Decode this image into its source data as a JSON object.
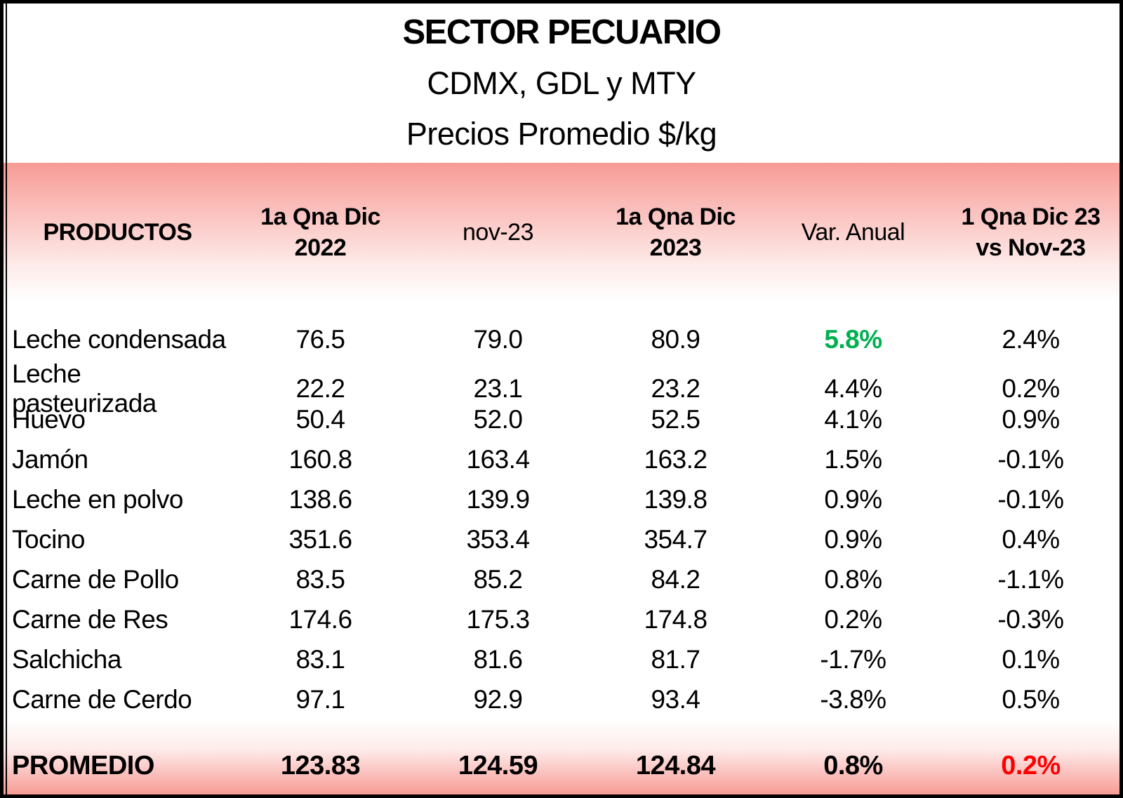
{
  "title": {
    "line1": "SECTOR PECUARIO",
    "line2": "CDMX, GDL y MTY",
    "line3": "Precios Promedio $/kg"
  },
  "table": {
    "headers": [
      "PRODUCTOS",
      "1a Qna Dic\n2022",
      "nov-23",
      "1a Qna Dic\n2023",
      "Var. Anual",
      "1 Qna Dic 23\nvs Nov-23"
    ],
    "rows": [
      {
        "producto": "Leche condensada",
        "values": [
          "76.5",
          "79.0",
          "80.9",
          "5.8%",
          "2.4%"
        ],
        "value_classes": {
          "3": "green"
        }
      },
      {
        "producto": "Leche pasteurizada",
        "values": [
          "22.2",
          "23.1",
          "23.2",
          "4.4%",
          "0.2%"
        ]
      },
      {
        "producto": "Huevo",
        "values": [
          "50.4",
          "52.0",
          "52.5",
          "4.1%",
          "0.9%"
        ]
      },
      {
        "producto": "Jamón",
        "values": [
          "160.8",
          "163.4",
          "163.2",
          "1.5%",
          "-0.1%"
        ]
      },
      {
        "producto": "Leche en polvo",
        "values": [
          "138.6",
          "139.9",
          "139.8",
          "0.9%",
          "-0.1%"
        ]
      },
      {
        "producto": "Tocino",
        "values": [
          "351.6",
          "353.4",
          "354.7",
          "0.9%",
          "0.4%"
        ]
      },
      {
        "producto": "Carne de Pollo",
        "values": [
          "83.5",
          "85.2",
          "84.2",
          "0.8%",
          "-1.1%"
        ]
      },
      {
        "producto": "Carne de Res",
        "values": [
          "174.6",
          "175.3",
          "174.8",
          "0.2%",
          "-0.3%"
        ]
      },
      {
        "producto": "Salchicha",
        "values": [
          "83.1",
          "81.6",
          "81.7",
          "-1.7%",
          "0.1%"
        ]
      },
      {
        "producto": "Carne de Cerdo",
        "values": [
          "97.1",
          "92.9",
          "93.4",
          "-3.8%",
          "0.5%"
        ]
      }
    ],
    "footer": {
      "label": "PROMEDIO",
      "values": [
        "123.83",
        "124.59",
        "124.84",
        "0.8%",
        "0.2%"
      ],
      "value_classes": {
        "4": "red"
      }
    }
  },
  "colors": {
    "header_pink": "#f89b95",
    "positive_green": "#00b050",
    "negative_red": "#ff0000",
    "border_black": "#000000"
  }
}
